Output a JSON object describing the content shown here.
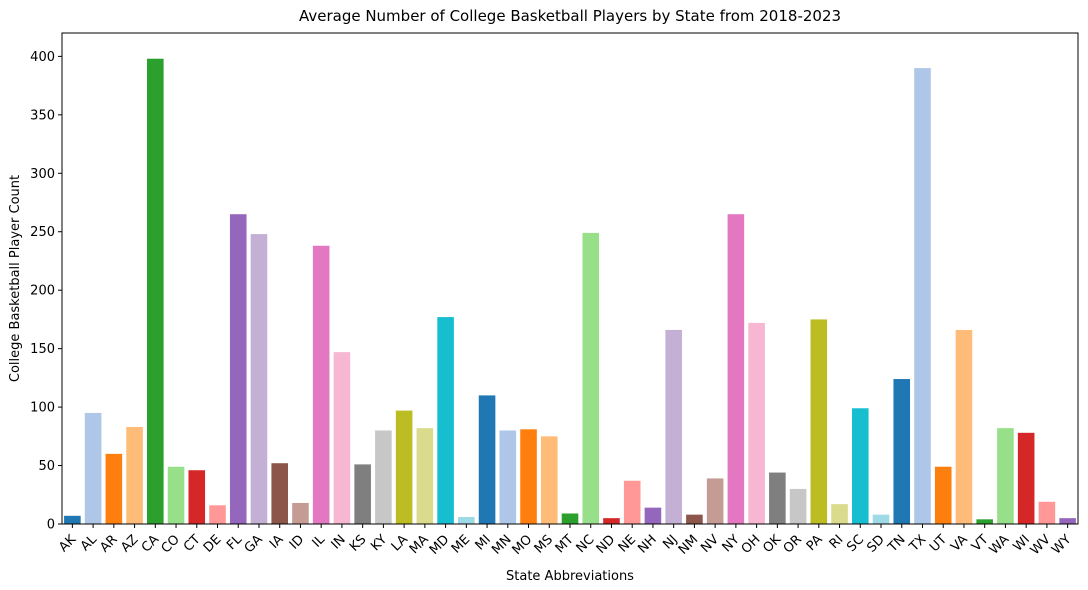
{
  "chart_data": {
    "type": "bar",
    "title": "Average Number of College Basketball Players by State from 2018-2023",
    "xlabel": "State Abbreviations",
    "ylabel": "College Basketball Player Count",
    "ylim": [
      0,
      420
    ],
    "yticks": [
      0,
      50,
      100,
      150,
      200,
      250,
      300,
      350,
      400
    ],
    "grid": false,
    "legend": "none",
    "categories": [
      "AK",
      "AL",
      "AR",
      "AZ",
      "CA",
      "CO",
      "CT",
      "DE",
      "FL",
      "GA",
      "IA",
      "ID",
      "IL",
      "IN",
      "KS",
      "KY",
      "LA",
      "MA",
      "MD",
      "ME",
      "MI",
      "MN",
      "MO",
      "MS",
      "MT",
      "NC",
      "ND",
      "NE",
      "NH",
      "NJ",
      "NM",
      "NV",
      "NY",
      "OH",
      "OK",
      "OR",
      "PA",
      "RI",
      "SC",
      "SD",
      "TN",
      "TX",
      "UT",
      "VA",
      "VT",
      "WA",
      "WI",
      "WV",
      "WY"
    ],
    "values": [
      7,
      95,
      60,
      83,
      398,
      49,
      46,
      16,
      265,
      248,
      52,
      18,
      238,
      147,
      51,
      80,
      97,
      82,
      177,
      6,
      110,
      80,
      81,
      75,
      9,
      249,
      5,
      37,
      14,
      166,
      8,
      39,
      265,
      172,
      44,
      30,
      175,
      17,
      99,
      8,
      124,
      390,
      49,
      166,
      4,
      82,
      78,
      19,
      5
    ],
    "colors": [
      "#1f77b4",
      "#aec7e8",
      "#ff7f0e",
      "#ffbb78",
      "#2ca02c",
      "#98df8a",
      "#d62728",
      "#ff9896",
      "#9467bd",
      "#c5b0d5",
      "#8c564b",
      "#c49c94",
      "#e377c2",
      "#f7b6d2",
      "#7f7f7f",
      "#c7c7c7",
      "#bcbd22",
      "#dbdb8d",
      "#17becf",
      "#9edae5",
      "#1f77b4",
      "#aec7e8",
      "#ff7f0e",
      "#ffbb78",
      "#2ca02c",
      "#98df8a",
      "#d62728",
      "#ff9896",
      "#9467bd",
      "#c5b0d5",
      "#8c564b",
      "#c49c94",
      "#e377c2",
      "#f7b6d2",
      "#7f7f7f",
      "#c7c7c7",
      "#bcbd22",
      "#dbdb8d",
      "#17becf",
      "#9edae5",
      "#1f77b4",
      "#aec7e8",
      "#ff7f0e",
      "#ffbb78",
      "#2ca02c",
      "#98df8a",
      "#d62728",
      "#ff9896",
      "#9467bd"
    ]
  }
}
